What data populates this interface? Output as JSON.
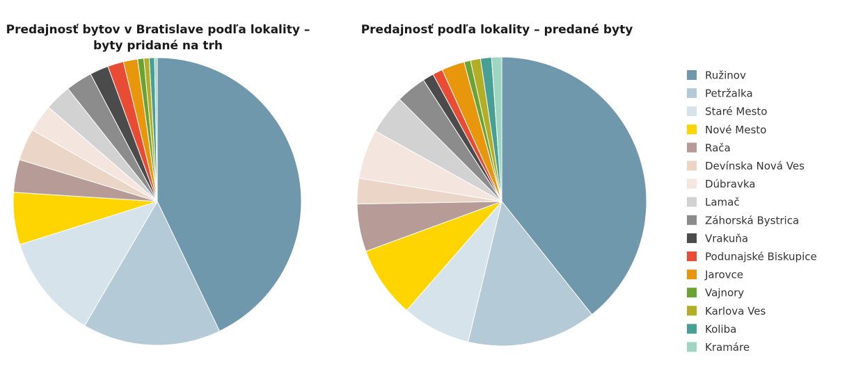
{
  "chart_data": [
    {
      "type": "pie",
      "title_lines": [
        "Predajnosť bytov v Bratislave podľa lokality –",
        "byty pridané na trh"
      ],
      "categories": [
        "Ružinov",
        "Petržalka",
        "Staré Mesto",
        "Nové Mesto",
        "Rača",
        "Devínska Nová Ves",
        "Dúbravka",
        "Lamač",
        "Záhorská Bystrica",
        "Vrakuňa",
        "Podunajské Biskupice",
        "Jarovce",
        "Vajnory",
        "Karlova Ves",
        "Koliba",
        "Kramáre"
      ],
      "values": [
        43.1,
        15.6,
        11.8,
        5.9,
        3.7,
        3.6,
        3.1,
        3.0,
        3.0,
        2.1,
        1.8,
        1.6,
        0.7,
        0.6,
        0.6,
        0.3
      ]
    },
    {
      "type": "pie",
      "title_lines": [
        "Predajnosť podľa lokality – predané byty"
      ],
      "categories": [
        "Ružinov",
        "Petržalka",
        "Staré Mesto",
        "Nové Mesto",
        "Rača",
        "Devínska Nová Ves",
        "Dúbravka",
        "Lamač",
        "Záhorská Bystrica",
        "Vrakuňa",
        "Podunajské Biskupice",
        "Jarovce",
        "Vajnory",
        "Karlova Ves",
        "Koliba",
        "Kramáre"
      ],
      "values": [
        38.4,
        14.1,
        7.5,
        7.8,
        5.2,
        2.8,
        5.4,
        4.3,
        3.3,
        1.2,
        1.1,
        2.5,
        0.7,
        1.1,
        1.2,
        1.1
      ]
    }
  ],
  "legend": {
    "items": [
      "Ružinov",
      "Petržalka",
      "Staré Mesto",
      "Nové Mesto",
      "Rača",
      "Devínska Nová Ves",
      "Dúbravka",
      "Lamač",
      "Záhorská Bystrica",
      "Vrakuňa",
      "Podunajské Biskupice",
      "Jarovce",
      "Vajnory",
      "Karlova Ves",
      "Koliba",
      "Kramáre"
    ],
    "placement": "right"
  },
  "colors": [
    "#7098ac",
    "#b4cad6",
    "#d7e3ea",
    "#ffd500",
    "#b69b96",
    "#ebd5c7",
    "#f4e6df",
    "#d2d2d2",
    "#8c8c8c",
    "#4b4b4b",
    "#e84c35",
    "#e8960b",
    "#6aa334",
    "#b3ae25",
    "#48a094",
    "#9fd6c2"
  ]
}
